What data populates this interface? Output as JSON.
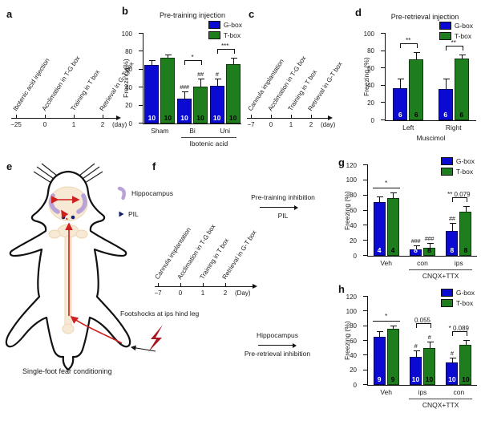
{
  "figure": {
    "colors": {
      "g_box": "#0a0ad2",
      "t_box": "#1e7e1e",
      "n_on_g": "#ffffff",
      "n_on_t": "#000000",
      "pathway_red": "#d01f1f",
      "bolt_red": "#aa1420",
      "hippocampus_purple": "#b9a2d8",
      "pil_navy": "#14206e",
      "spine_beige": "#f7e9d4"
    },
    "panels": {
      "a": {
        "letter": "a",
        "timeline": {
          "events": [
            "Ibotenic acid injection",
            "Acclimation in T-G box",
            "Training in T box",
            "Retrieval in G-T box"
          ],
          "ticks": [
            "−25",
            "0",
            "1",
            "2"
          ],
          "unit": "(day)"
        }
      },
      "b": {
        "letter": "b",
        "chart": {
          "type": "bar",
          "title": "Pre-training injection",
          "ylabel": "Freezing (%)",
          "ymax": 100,
          "ystep": 20,
          "legend": [
            "G-box",
            "T-box"
          ],
          "groups": [
            {
              "label": "Sham",
              "bars": [
                {
                  "value": 65,
                  "err": 5,
                  "n": "10"
                },
                {
                  "value": 73,
                  "err": 3,
                  "n": "10"
                }
              ]
            },
            {
              "label": "Bi",
              "bracket": "*",
              "bars": [
                {
                  "value": 28,
                  "err": 7,
                  "n": "10",
                  "mark": "###"
                },
                {
                  "value": 41,
                  "err": 8,
                  "n": "10",
                  "mark": "##"
                }
              ]
            },
            {
              "label": "Uni",
              "bracket": "***",
              "bars": [
                {
                  "value": 42,
                  "err": 7,
                  "n": "10",
                  "mark": "#"
                },
                {
                  "value": 66,
                  "err": 6,
                  "n": "10"
                }
              ]
            }
          ],
          "group_annotation": {
            "label": "Ibotenic acid",
            "span": [
              1,
              2
            ],
            "line": true
          }
        }
      },
      "c": {
        "letter": "c",
        "timeline": {
          "events": [
            "Cannula implantation",
            "Acclimation in T-G box",
            "Training in T box",
            "Retrieval in G-T box"
          ],
          "ticks": [
            "−7",
            "0",
            "1",
            "2"
          ],
          "unit": "(day)"
        }
      },
      "d": {
        "letter": "d",
        "chart": {
          "type": "bar",
          "title": "Pre-retrieval injection",
          "ylabel": "Freezing (%)",
          "ymax": 100,
          "ystep": 20,
          "legend": [
            "G-box",
            "T-box"
          ],
          "groups": [
            {
              "label": "Left",
              "bracket": "**",
              "bars": [
                {
                  "value": 37,
                  "err": 10,
                  "n": "6"
                },
                {
                  "value": 70,
                  "err": 8,
                  "n": "6"
                }
              ]
            },
            {
              "label": "Right",
              "bracket": "**",
              "bars": [
                {
                  "value": 36,
                  "err": 11,
                  "n": "6"
                },
                {
                  "value": 71,
                  "err": 4,
                  "n": "6"
                }
              ]
            }
          ],
          "group_annotation": {
            "label": "Muscimol",
            "span": [
              0,
              1
            ],
            "line": false
          }
        }
      },
      "e": {
        "letter": "e",
        "legend": [
          {
            "label": "Hippocampus"
          },
          {
            "label": "PIL"
          }
        ],
        "footshock_label": "Footshocks at ips hind leg",
        "caption": "Single-foot fear conditioning"
      },
      "f": {
        "letter": "f",
        "timeline": {
          "events": [
            "Cannula implantation",
            "Acclimation in T-G box",
            "Training in T box",
            "Retrieval in G-T box"
          ],
          "ticks": [
            "−7",
            "0",
            "1",
            "2"
          ],
          "unit": "(Day)"
        },
        "flows": [
          {
            "top": "Pre-training inhibition",
            "bottom": "PIL"
          },
          {
            "top": "Hippocampus",
            "bottom": "Pre-retrieval inhibition"
          }
        ]
      },
      "g": {
        "letter": "g",
        "chart": {
          "type": "bar",
          "ylabel": "Freezing (%)",
          "ymax": 120,
          "ystep": 20,
          "legend": [
            "G-box",
            "T-box"
          ],
          "groups": [
            {
              "label": "Veh",
              "overline": "*",
              "bars": [
                {
                  "value": 71,
                  "err": 7,
                  "n": "4"
                },
                {
                  "value": 76,
                  "err": 7,
                  "n": "4"
                }
              ]
            },
            {
              "label": "con",
              "bars": [
                {
                  "value": 9,
                  "err": 4,
                  "n": "8",
                  "mark": "###"
                },
                {
                  "value": 11,
                  "err": 5,
                  "n": "8",
                  "mark": "###"
                }
              ]
            },
            {
              "label": "ips",
              "bracket": "** 0.079",
              "bars": [
                {
                  "value": 33,
                  "err": 10,
                  "n": "8",
                  "mark": "##"
                },
                {
                  "value": 58,
                  "err": 7,
                  "n": "8"
                }
              ]
            }
          ],
          "group_annotation": {
            "label": "CNQX+TTX",
            "span": [
              1,
              2
            ],
            "line": true
          }
        }
      },
      "h": {
        "letter": "h",
        "chart": {
          "type": "bar",
          "ylabel": "Freezing (%)",
          "ymax": 120,
          "ystep": 20,
          "legend": [
            "G-box",
            "T-box"
          ],
          "groups": [
            {
              "label": "Veh",
              "overline": "*",
              "bars": [
                {
                  "value": 66,
                  "err": 6,
                  "n": "9"
                },
                {
                  "value": 76,
                  "err": 4,
                  "n": "9"
                }
              ]
            },
            {
              "label": "ips",
              "bracket": "0.055",
              "bars": [
                {
                  "value": 38,
                  "err": 8,
                  "n": "10",
                  "mark": "#"
                },
                {
                  "value": 50,
                  "err": 8,
                  "n": "10",
                  "mark": "#"
                }
              ]
            },
            {
              "label": "con",
              "bracket": "* 0.089",
              "bars": [
                {
                  "value": 31,
                  "err": 5,
                  "n": "10",
                  "mark": "#"
                },
                {
                  "value": 55,
                  "err": 5,
                  "n": "10"
                }
              ]
            }
          ],
          "group_annotation": {
            "label": "CNQX+TTX",
            "span": [
              1,
              2
            ],
            "line": true
          }
        }
      }
    }
  }
}
